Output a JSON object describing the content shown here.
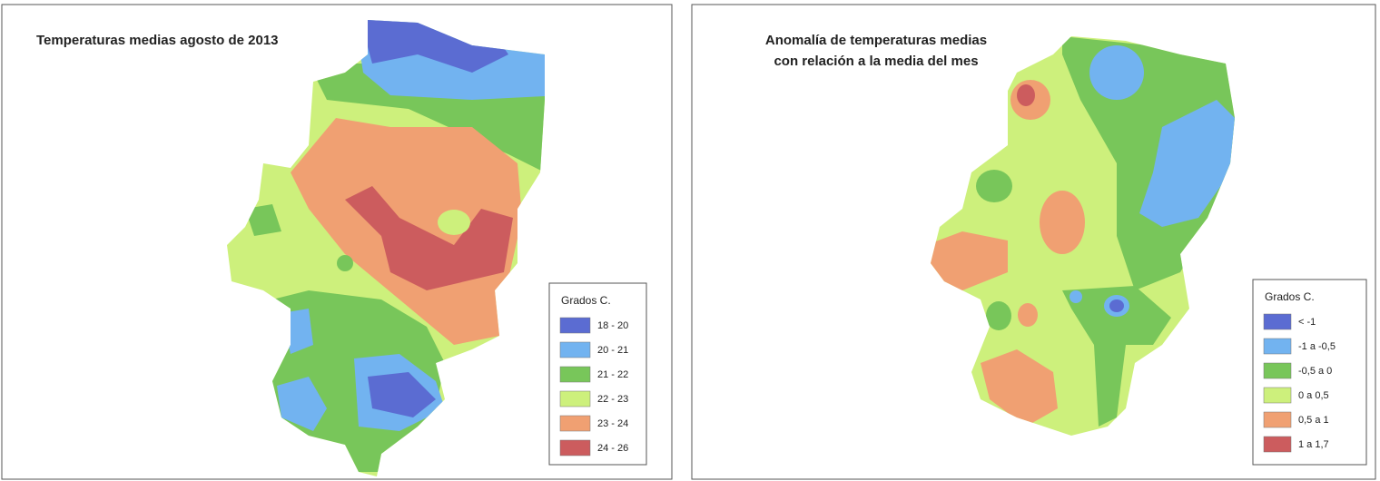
{
  "maps": [
    {
      "title_lines": [
        "Temperaturas medias agosto de 2013"
      ],
      "legend": {
        "title": "Grados C.",
        "items": [
          {
            "label": "18 - 20",
            "color": "#5b6cd2"
          },
          {
            "label": "20 - 21",
            "color": "#72b3f0"
          },
          {
            "label": "21 - 22",
            "color": "#78c65a"
          },
          {
            "label": "22 - 23",
            "color": "#cdf07c"
          },
          {
            "label": "23 - 24",
            "color": "#f0a072"
          },
          {
            "label": "24 - 26",
            "color": "#cc5c5e"
          }
        ]
      }
    },
    {
      "title_lines": [
        "Anomalía de temperaturas medias",
        "con relación a la media del mes"
      ],
      "legend": {
        "title": "Grados C.",
        "items": [
          {
            "label": "< -1",
            "color": "#5b6cd2"
          },
          {
            "label": "-1 a -0,5",
            "color": "#72b3f0"
          },
          {
            "label": "-0,5 a 0",
            "color": "#78c65a"
          },
          {
            "label": "0 a 0,5",
            "color": "#cdf07c"
          },
          {
            "label": "0,5 a 1",
            "color": "#f0a072"
          },
          {
            "label": "1 a 1,7",
            "color": "#cc5c5e"
          }
        ]
      }
    }
  ]
}
